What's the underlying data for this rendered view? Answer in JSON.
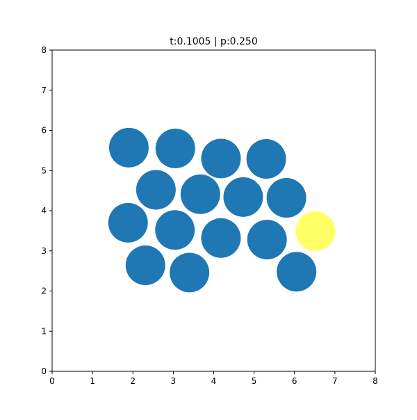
{
  "chart_data": {
    "type": "scatter",
    "title": "t:0.1005 | p:0.250",
    "xlabel": "",
    "ylabel": "",
    "xlim": [
      0,
      8
    ],
    "ylim": [
      0,
      8
    ],
    "grid": false,
    "x_ticks": [
      "0",
      "1",
      "2",
      "3",
      "4",
      "5",
      "6",
      "7",
      "8"
    ],
    "y_ticks": [
      "0",
      "1",
      "2",
      "3",
      "4",
      "5",
      "6",
      "7",
      "8"
    ],
    "marker_radius": 0.49,
    "colors": {
      "default": "#1f77b4",
      "highlight": "#ffff66",
      "axes": "#000000",
      "background": "#ffffff"
    },
    "points": [
      {
        "x": 1.9,
        "y": 5.57,
        "highlight": false
      },
      {
        "x": 3.05,
        "y": 5.55,
        "highlight": false
      },
      {
        "x": 4.18,
        "y": 5.3,
        "highlight": false
      },
      {
        "x": 5.3,
        "y": 5.29,
        "highlight": false
      },
      {
        "x": 2.57,
        "y": 4.52,
        "highlight": false
      },
      {
        "x": 3.67,
        "y": 4.41,
        "highlight": false
      },
      {
        "x": 4.73,
        "y": 4.34,
        "highlight": false
      },
      {
        "x": 5.8,
        "y": 4.32,
        "highlight": false
      },
      {
        "x": 1.88,
        "y": 3.7,
        "highlight": false
      },
      {
        "x": 3.04,
        "y": 3.52,
        "highlight": false
      },
      {
        "x": 4.18,
        "y": 3.32,
        "highlight": false
      },
      {
        "x": 5.32,
        "y": 3.28,
        "highlight": false
      },
      {
        "x": 6.52,
        "y": 3.49,
        "highlight": true
      },
      {
        "x": 2.31,
        "y": 2.64,
        "highlight": false
      },
      {
        "x": 3.4,
        "y": 2.46,
        "highlight": false
      },
      {
        "x": 6.05,
        "y": 2.48,
        "highlight": false
      }
    ]
  }
}
